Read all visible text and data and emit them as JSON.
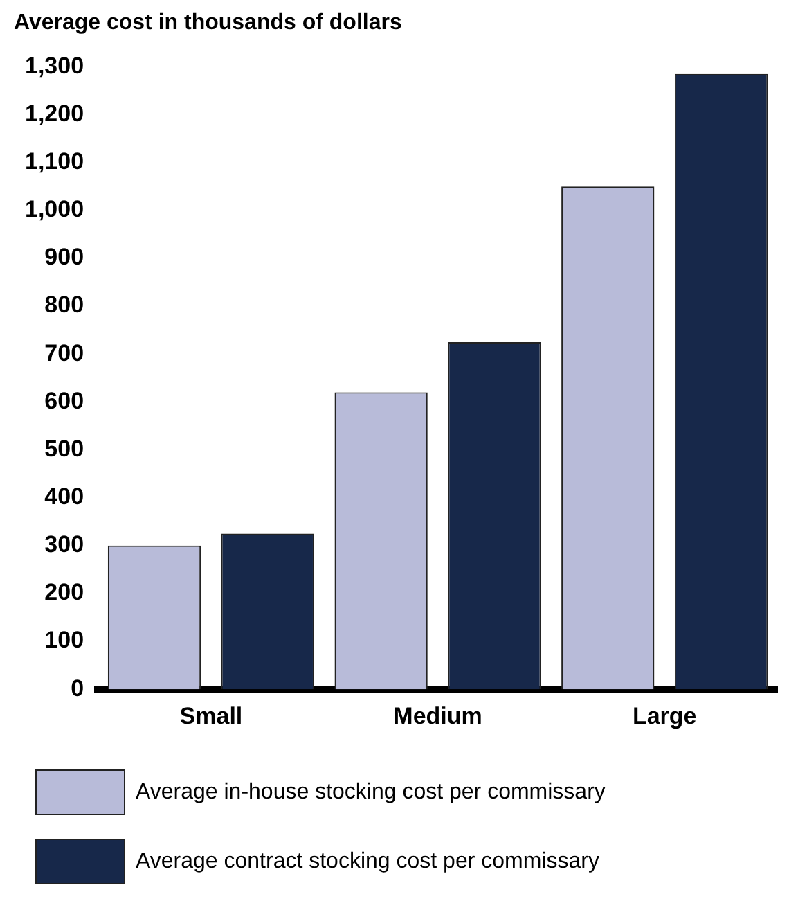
{
  "chart_data": {
    "type": "bar",
    "ylabel": "Average cost in thousands of dollars",
    "categories": [
      "Small",
      "Medium",
      "Large"
    ],
    "series": [
      {
        "name": "Average in-house stocking cost per commissary",
        "color": "#b8bbd9",
        "values": [
          300,
          620,
          1050
        ]
      },
      {
        "name": "Average contract stocking cost per commissary",
        "color": "#17284a",
        "values": [
          325,
          725,
          1285
        ]
      }
    ],
    "ylim": [
      0,
      1300
    ],
    "yticks": [
      0,
      100,
      200,
      300,
      400,
      500,
      600,
      700,
      800,
      900,
      {
        "value": 1000,
        "label": "1,000"
      },
      {
        "value": 1100,
        "label": "1,100"
      },
      {
        "value": 1200,
        "label": "1,200"
      },
      {
        "value": 1300,
        "label": "1,300"
      }
    ],
    "grid": false,
    "legend": "bottom"
  }
}
